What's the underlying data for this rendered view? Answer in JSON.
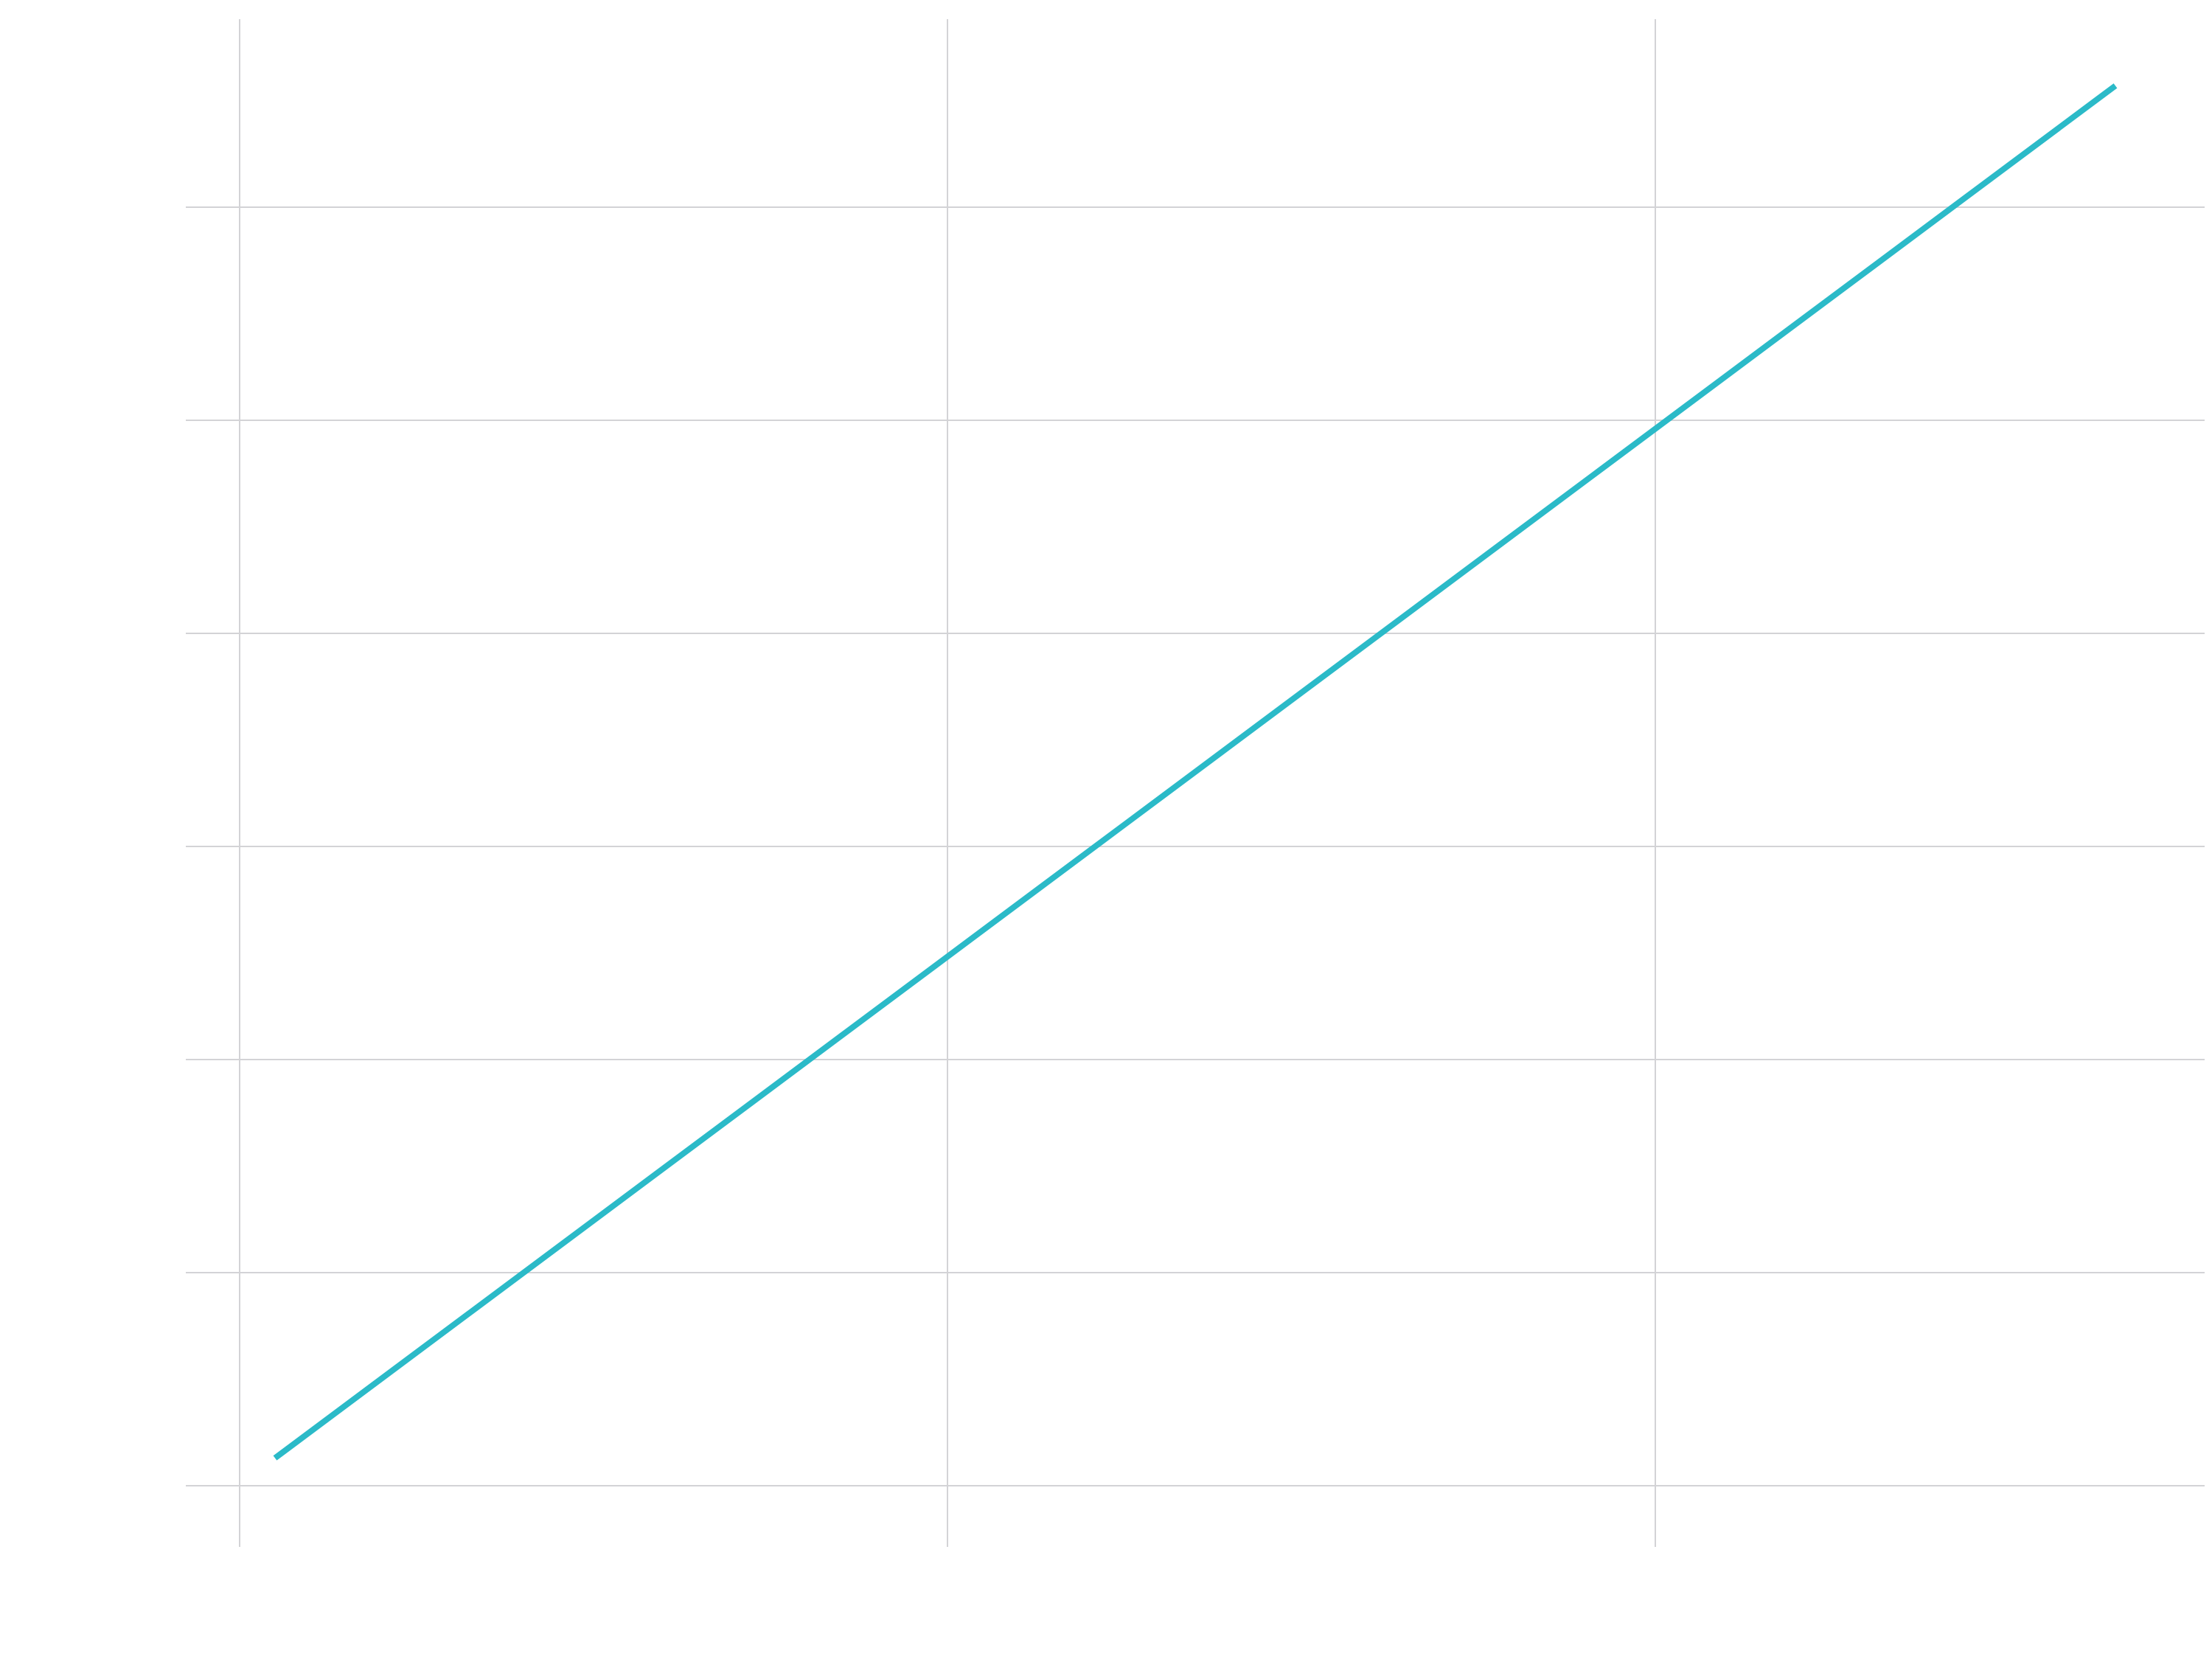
{
  "chart_data": {
    "type": "line",
    "title": "",
    "xlabel": "",
    "ylabel": "",
    "xlim": [
      -0.05,
      2.8
    ],
    "ylim": [
      -0.3,
      6.9
    ],
    "xgrid": [
      0,
      1,
      2
    ],
    "ygrid": [
      0,
      1,
      2,
      3,
      4,
      5,
      6
    ],
    "grid": true,
    "legend": "none",
    "series": [
      {
        "color": "#2bbac8",
        "x": [
          0.05,
          2.65
        ],
        "y": [
          0.13,
          6.57
        ]
      }
    ]
  },
  "colors": {
    "background": "#ffffff",
    "grid": "#d3d3d6",
    "line": "#2bbac8"
  }
}
